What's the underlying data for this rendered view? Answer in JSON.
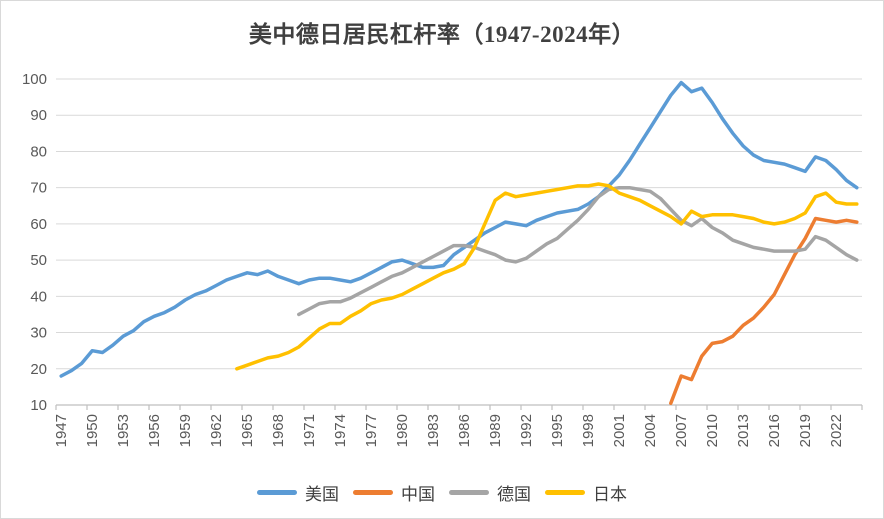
{
  "title": "美中德日居民杠杆率（1947-2024年）",
  "chart_data": {
    "type": "line",
    "title": "美中德日居民杠杆率（1947-2024年）",
    "xlabel": "",
    "ylabel": "",
    "x_axis": {
      "start": 1947,
      "end": 2024,
      "tick_interval": 3,
      "tick_labels": [
        "1947",
        "1950",
        "1953",
        "1956",
        "1959",
        "1962",
        "1965",
        "1968",
        "1971",
        "1974",
        "1977",
        "1980",
        "1983",
        "1986",
        "1989",
        "1992",
        "1995",
        "1998",
        "2001",
        "2004",
        "2007",
        "2010",
        "2013",
        "2016",
        "2019",
        "2022"
      ]
    },
    "y_axis": {
      "min": 10,
      "max": 100,
      "tick_step": 10,
      "tick_labels": [
        "10",
        "20",
        "30",
        "40",
        "50",
        "60",
        "70",
        "80",
        "90",
        "100"
      ]
    },
    "grid": true,
    "legend_position": "bottom",
    "style": {
      "grid_color": "#d9d9d9",
      "axis_color": "#bfbfbf",
      "tick_label_color": "#595959",
      "title_color": "#404040",
      "line_width": 3.5
    },
    "series": [
      {
        "name": "美国",
        "color": "#5B9BD5",
        "start_year": 1947,
        "values": [
          18,
          19.5,
          21.5,
          25,
          24.5,
          26.5,
          29,
          30.5,
          33,
          34.5,
          35.5,
          37,
          39,
          40.5,
          41.5,
          43,
          44.5,
          45.5,
          46.5,
          46,
          47,
          45.5,
          44.5,
          43.5,
          44.5,
          45,
          45,
          44.5,
          44,
          45,
          46.5,
          48,
          49.5,
          50,
          49,
          48,
          48,
          48.5,
          51.5,
          53.5,
          55.5,
          57.5,
          59,
          60.5,
          60,
          59.5,
          61,
          62,
          63,
          63.5,
          64,
          65.5,
          67.5,
          70.5,
          73.5,
          77.5,
          82,
          86.5,
          91,
          95.5,
          99,
          96.5,
          97.5,
          93.5,
          89,
          85,
          81.5,
          79,
          77.5,
          77,
          76.5,
          75.5,
          74.5,
          78.5,
          77.5,
          75,
          72,
          70
        ]
      },
      {
        "name": "中国",
        "color": "#ED7D31",
        "start_year": 2006,
        "values": [
          10.5,
          18,
          17,
          23.5,
          27,
          27.5,
          29,
          32,
          34,
          37,
          40.5,
          46,
          51.5,
          56,
          61.5,
          61,
          60.5,
          61,
          60.5
        ]
      },
      {
        "name": "德国",
        "color": "#A5A5A5",
        "start_year": 1970,
        "values": [
          35,
          36.5,
          38,
          38.5,
          38.5,
          39.5,
          41,
          42.5,
          44,
          45.5,
          46.5,
          48,
          49.5,
          51,
          52.5,
          54,
          54,
          53.5,
          52.5,
          51.5,
          50,
          49.5,
          50.5,
          52.5,
          54.5,
          56,
          58.5,
          61,
          64,
          67.5,
          69.5,
          70,
          70,
          69.5,
          69,
          67,
          64,
          61,
          59.5,
          61.5,
          59,
          57.5,
          55.5,
          54.5,
          53.5,
          53,
          52.5,
          52.5,
          52.5,
          53,
          56.5,
          55.5,
          53.5,
          51.5,
          50
        ]
      },
      {
        "name": "日本",
        "color": "#FFC000",
        "start_year": 1964,
        "values": [
          20,
          21,
          22,
          23,
          23.5,
          24.5,
          26,
          28.5,
          31,
          32.5,
          32.5,
          34.5,
          36,
          38,
          39,
          39.5,
          40.5,
          42,
          43.5,
          45,
          46.5,
          47.5,
          49,
          53.5,
          60,
          66.5,
          68.5,
          67.5,
          68,
          68.5,
          69,
          69.5,
          70,
          70.5,
          70.5,
          71,
          70.5,
          68.5,
          67.5,
          66.5,
          65,
          63.5,
          62,
          60,
          63.5,
          62,
          62.5,
          62.5,
          62.5,
          62,
          61.5,
          60.5,
          60,
          60.5,
          61.5,
          63,
          67.5,
          68.5,
          66,
          65.5,
          65.5
        ]
      }
    ]
  }
}
